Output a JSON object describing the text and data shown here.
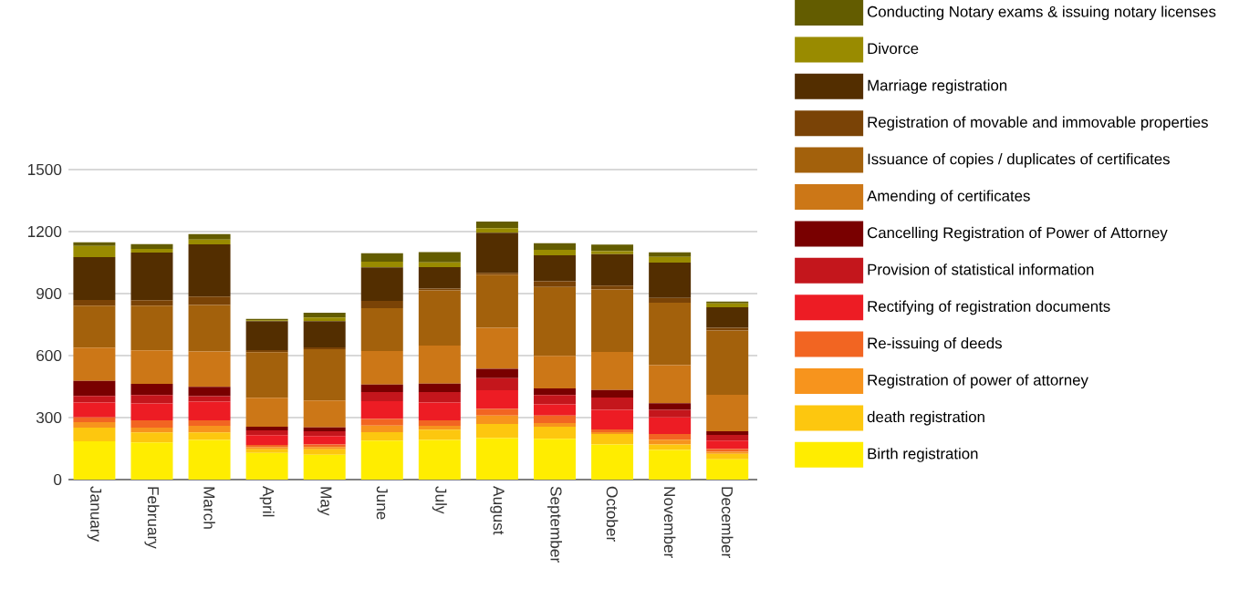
{
  "chart_data": {
    "type": "bar",
    "stacked": true,
    "grid": "y",
    "legend": "right",
    "categories": [
      "January",
      "February",
      "March",
      "April",
      "May",
      "June",
      "July",
      "August",
      "September",
      "October",
      "November",
      "December"
    ],
    "ylim": [
      0,
      1500
    ],
    "yticks": [
      0,
      300,
      600,
      900,
      1200,
      1500
    ],
    "series": [
      {
        "name": "Birth registration",
        "color": "#ffed00",
        "values": [
          185,
          180,
          192,
          129,
          120,
          188,
          192,
          201,
          197,
          170,
          143,
          98
        ]
      },
      {
        "name": "death registration",
        "color": "#fdc70f",
        "values": [
          66,
          48,
          36,
          18,
          27,
          41,
          50,
          68,
          59,
          50,
          27,
          27
        ]
      },
      {
        "name": "Registration of power of attorney",
        "color": "#f7941d",
        "values": [
          27,
          23,
          32,
          9,
          11,
          32,
          18,
          41,
          18,
          9,
          23,
          9
        ]
      },
      {
        "name": "Re-issuing of deeds",
        "color": "#f26522",
        "values": [
          23,
          36,
          27,
          12,
          12,
          32,
          27,
          32,
          36,
          14,
          27,
          14
        ]
      },
      {
        "name": "Rectifying of registration documents",
        "color": "#ed1c24",
        "values": [
          72,
          81,
          90,
          47,
          41,
          86,
          86,
          90,
          54,
          95,
          81,
          41
        ]
      },
      {
        "name": "Provision of statistical information",
        "color": "#c4161c",
        "values": [
          32,
          41,
          27,
          23,
          23,
          45,
          50,
          59,
          45,
          59,
          36,
          27
        ]
      },
      {
        "name": "Cancelling Registration of Power of Attorney",
        "color": "#790000",
        "values": [
          72,
          54,
          45,
          18,
          18,
          36,
          41,
          45,
          32,
          36,
          32,
          18
        ]
      },
      {
        "name": "Amending of certificates",
        "color": "#cc7717",
        "values": [
          162,
          162,
          171,
          140,
          131,
          162,
          185,
          198,
          158,
          185,
          185,
          176
        ]
      },
      {
        "name": "Issuance of copies / duplicates of certificates",
        "color": "#a3610c",
        "values": [
          203,
          216,
          225,
          221,
          248,
          207,
          266,
          257,
          333,
          302,
          302,
          311
        ]
      },
      {
        "name": "Registration of movable and immovable properties",
        "color": "#7a4306",
        "values": [
          27,
          27,
          41,
          9,
          9,
          36,
          9,
          9,
          27,
          18,
          23,
          14
        ]
      },
      {
        "name": "Marriage registration",
        "color": "#532e00",
        "values": [
          207,
          230,
          252,
          140,
          126,
          162,
          104,
          194,
          126,
          153,
          171,
          99
        ]
      },
      {
        "name": "Divorce",
        "color": "#998b00",
        "values": [
          54,
          18,
          23,
          5,
          18,
          27,
          23,
          23,
          27,
          14,
          27,
          18
        ]
      },
      {
        "name": "Conducting Notary exams & issuing notary licenses",
        "color": "#635c00",
        "values": [
          18,
          23,
          27,
          6,
          23,
          41,
          50,
          32,
          32,
          32,
          23,
          9
        ]
      }
    ]
  }
}
